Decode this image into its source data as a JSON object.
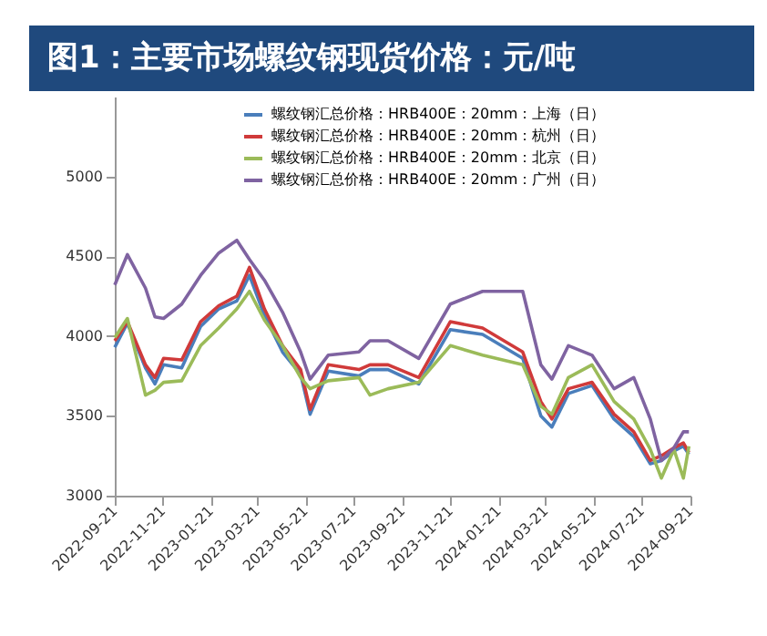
{
  "chart_data": {
    "type": "line",
    "title": "图1：主要市场螺纹钢现货价格：元/吨",
    "x": [
      "2022-09-21",
      "2022-10-07",
      "2022-10-30",
      "2022-11-11",
      "2022-11-22",
      "2022-12-15",
      "2023-01-08",
      "2023-01-31",
      "2023-02-23",
      "2023-03-11",
      "2023-03-30",
      "2023-04-22",
      "2023-05-15",
      "2023-05-27",
      "2023-06-19",
      "2023-07-28",
      "2023-08-11",
      "2023-09-03",
      "2023-10-12",
      "2023-11-21",
      "2024-01-01",
      "2024-02-21",
      "2024-03-15",
      "2024-03-29",
      "2024-04-19",
      "2024-05-19",
      "2024-06-16",
      "2024-07-11",
      "2024-08-01",
      "2024-08-15",
      "2024-08-31",
      "2024-09-12",
      "2024-09-19"
    ],
    "series": [
      {
        "name": "螺纹钢汇总价格：HRB400E：20mm：上海（日）",
        "color": "#4a7ebb",
        "values": [
          3930,
          4080,
          3800,
          3700,
          3820,
          3800,
          4060,
          4170,
          4220,
          4380,
          4130,
          3900,
          3760,
          3510,
          3780,
          3750,
          3790,
          3790,
          3700,
          4040,
          4010,
          3860,
          3500,
          3430,
          3640,
          3690,
          3480,
          3370,
          3200,
          3220,
          3280,
          3310,
          3260
        ]
      },
      {
        "name": "螺纹钢汇总价格：HRB400E：20mm：杭州（日）",
        "color": "#d03a3a",
        "values": [
          3970,
          4090,
          3820,
          3740,
          3860,
          3850,
          4090,
          4190,
          4250,
          4430,
          4170,
          3940,
          3790,
          3540,
          3820,
          3790,
          3820,
          3820,
          3740,
          4090,
          4050,
          3900,
          3590,
          3480,
          3670,
          3710,
          3510,
          3400,
          3220,
          3250,
          3300,
          3330,
          3270
        ]
      },
      {
        "name": "螺纹钢汇总价格：HRB400E：20mm：北京（日）",
        "color": "#9bbb59",
        "values": [
          3990,
          4110,
          3630,
          3660,
          3710,
          3720,
          3940,
          4050,
          4170,
          4280,
          4100,
          3940,
          3740,
          3670,
          3720,
          3740,
          3630,
          3670,
          3710,
          3940,
          3880,
          3820,
          3560,
          3510,
          3740,
          3820,
          3590,
          3480,
          3290,
          3110,
          3290,
          3110,
          3310
        ]
      },
      {
        "name": "螺纹钢汇总价格：HRB400E：20mm：广州（日）",
        "color": "#7f63a1",
        "values": [
          4320,
          4510,
          4300,
          4120,
          4110,
          4200,
          4380,
          4520,
          4600,
          4480,
          4350,
          4150,
          3900,
          3730,
          3880,
          3900,
          3970,
          3970,
          3860,
          4200,
          4280,
          4280,
          3820,
          3730,
          3940,
          3880,
          3670,
          3740,
          3480,
          3220,
          3300,
          3400,
          3400
        ]
      }
    ],
    "xlim": [
      "2022-09-21",
      "2024-09-21"
    ],
    "xticks": [
      "2022-09-21",
      "2022-11-21",
      "2023-01-21",
      "2023-03-21",
      "2023-05-21",
      "2023-07-21",
      "2023-09-21",
      "2023-11-21",
      "2024-01-21",
      "2024-03-21",
      "2024-05-21",
      "2024-07-21",
      "2024-09-21"
    ],
    "ylim": [
      3000,
      5500
    ],
    "yticks": [
      3000,
      3500,
      4000,
      4500,
      5000
    ],
    "grid": false,
    "legend": "top",
    "marker": "none",
    "line_style": "solid"
  }
}
